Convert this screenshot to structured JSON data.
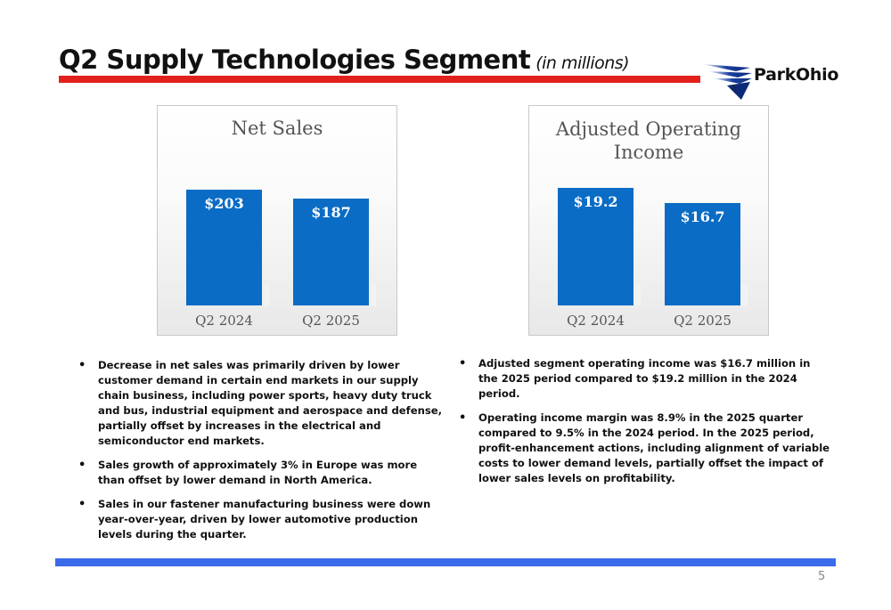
{
  "header": {
    "title": "Q2 Supply Technologies Segment",
    "subtitle": "(in millions)",
    "logo_text": "ParkOhio",
    "logo_mark": "®",
    "accent_red": "#e3211c",
    "accent_blue": "#3a6bea"
  },
  "chart_data": [
    {
      "type": "bar",
      "title": "Net Sales",
      "categories": [
        "Q2 2024",
        "Q2 2025"
      ],
      "values": [
        203,
        187
      ],
      "data_labels": [
        "$203",
        "$187"
      ],
      "color": "#0a6cc4"
    },
    {
      "type": "bar",
      "title": "Adjusted Operating Income",
      "title_lines": [
        "Adjusted Operating",
        "Income"
      ],
      "categories": [
        "Q2 2024",
        "Q2 2025"
      ],
      "values": [
        19.2,
        16.7
      ],
      "data_labels": [
        "$19.2",
        "$16.7"
      ],
      "color": "#0a6cc4"
    }
  ],
  "left_bullets": [
    "Decrease in net sales was primarily driven by lower customer demand in certain end markets in our supply chain business, including power sports, heavy duty truck and bus, industrial equipment and aerospace and defense, partially offset by increases in the electrical and semiconductor end markets.",
    "Sales growth of approximately 3% in Europe was more than offset by lower demand in North America.",
    "Sales in our fastener manufacturing business were down year-over-year, driven by lower automotive production levels during the quarter."
  ],
  "right_bullets": [
    "Adjusted segment operating income was $16.7 million in the 2025 period compared to $19.2 million in the 2024 period.",
    "Operating income margin was 8.9% in the 2025 quarter compared to 9.5% in the 2024 period.  In the 2025 period, profit-enhancement actions, including alignment of variable costs to lower demand levels, partially offset the impact of lower sales levels on profitability."
  ],
  "footer": {
    "page_number": "5"
  }
}
